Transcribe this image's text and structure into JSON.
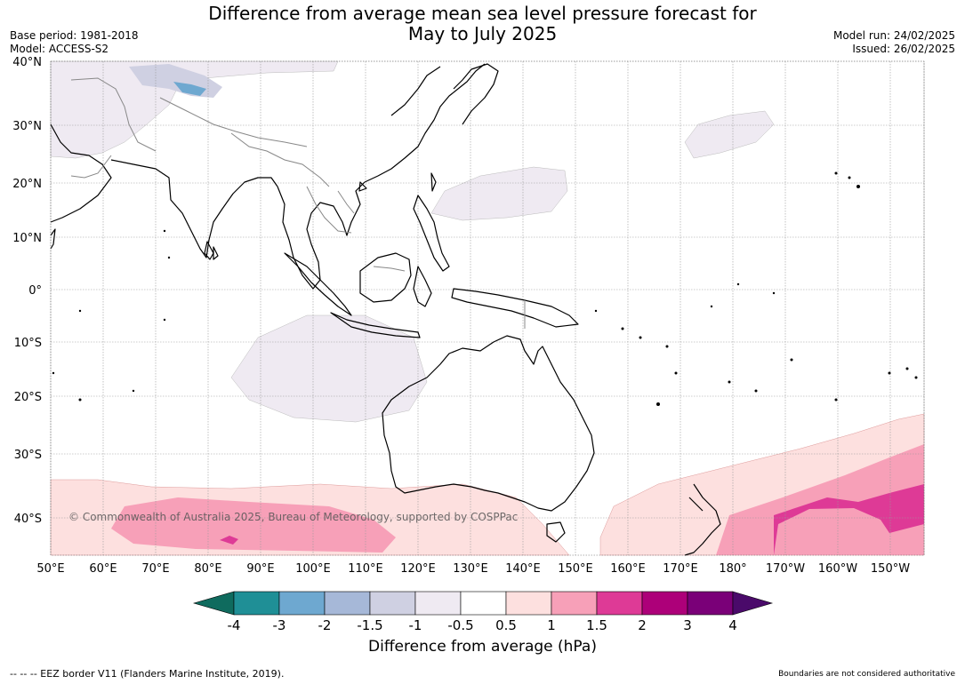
{
  "title_line1": "Difference from average mean sea level pressure forecast for",
  "title_line2": "May to July 2025",
  "base_period": "Base period: 1981-2018",
  "model": "Model: ACCESS-S2",
  "model_run": "Model run: 24/02/2025",
  "issued": "Issued: 26/02/2025",
  "copyright": "© Commonwealth of Australia 2025, Bureau of Meteorology, supported by COSPPac",
  "lat_labels": [
    "40°N",
    "30°N",
    "20°N",
    "10°N",
    "0°",
    "10°S",
    "20°S",
    "30°S",
    "40°S"
  ],
  "lon_labels": [
    "50°E",
    "60°E",
    "70°E",
    "80°E",
    "90°E",
    "100°E",
    "110°E",
    "120°E",
    "130°E",
    "140°E",
    "150°E",
    "160°E",
    "170°E",
    "180°",
    "170°W",
    "160°W",
    "150°W"
  ],
  "colorbar": {
    "ticks": [
      "-4",
      "-3",
      "-2",
      "-1.5",
      "-1",
      "-0.5",
      "0.5",
      "1",
      "1.5",
      "2",
      "3",
      "4"
    ],
    "colors": [
      "#0f6b5e",
      "#1f8f96",
      "#6ea8d0",
      "#a6b8d8",
      "#cfd0e2",
      "#efeaf2",
      "#ffffff",
      "#fde0df",
      "#f7a0b8",
      "#de3a96",
      "#ad0079",
      "#7a0078",
      "#4a0a6a"
    ],
    "label": "Difference from average (hPa)"
  },
  "footer_left": "--  --  -- EEZ border V11 (Flanders Marine Institute, 2019).",
  "footer_right": "Boundaries are not considered authoritative"
}
